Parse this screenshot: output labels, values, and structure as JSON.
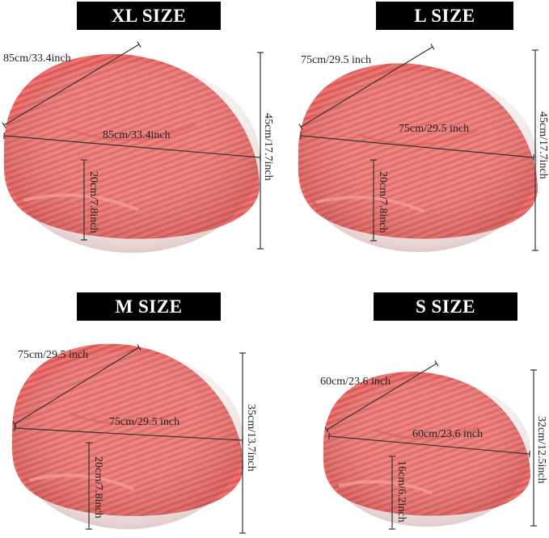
{
  "colors": {
    "bag": "#ec7470",
    "bag_dark": "#d95a59",
    "bag_light": "#f59c95",
    "banner": "#000000",
    "line": "#333333"
  },
  "panels": [
    {
      "id": "xl",
      "title": "XL SIZE",
      "diagonal": "85cm/33.4inch",
      "width": "85cm/33.4inch",
      "height": "45cm/17.7inch",
      "seat": "20cm/7.8inch"
    },
    {
      "id": "l",
      "title": "L SIZE",
      "diagonal": "75cm/29.5 inch",
      "width": "75cm/29.5 inch",
      "height": "45cm/17.7inch",
      "seat": "20cm/7.8inch"
    },
    {
      "id": "m",
      "title": "M SIZE",
      "diagonal": "75cm/29.5 inch",
      "width": "75cm/29.5 inch",
      "height": "35cm/13.7inch",
      "seat": "20cm/7.8inch"
    },
    {
      "id": "s",
      "title": "S SIZE",
      "diagonal": "60cm/23.6 inch",
      "width": "60cm/23.6 inch",
      "height": "32cm/12.5inch",
      "seat": "16cm/6.2inch"
    }
  ]
}
